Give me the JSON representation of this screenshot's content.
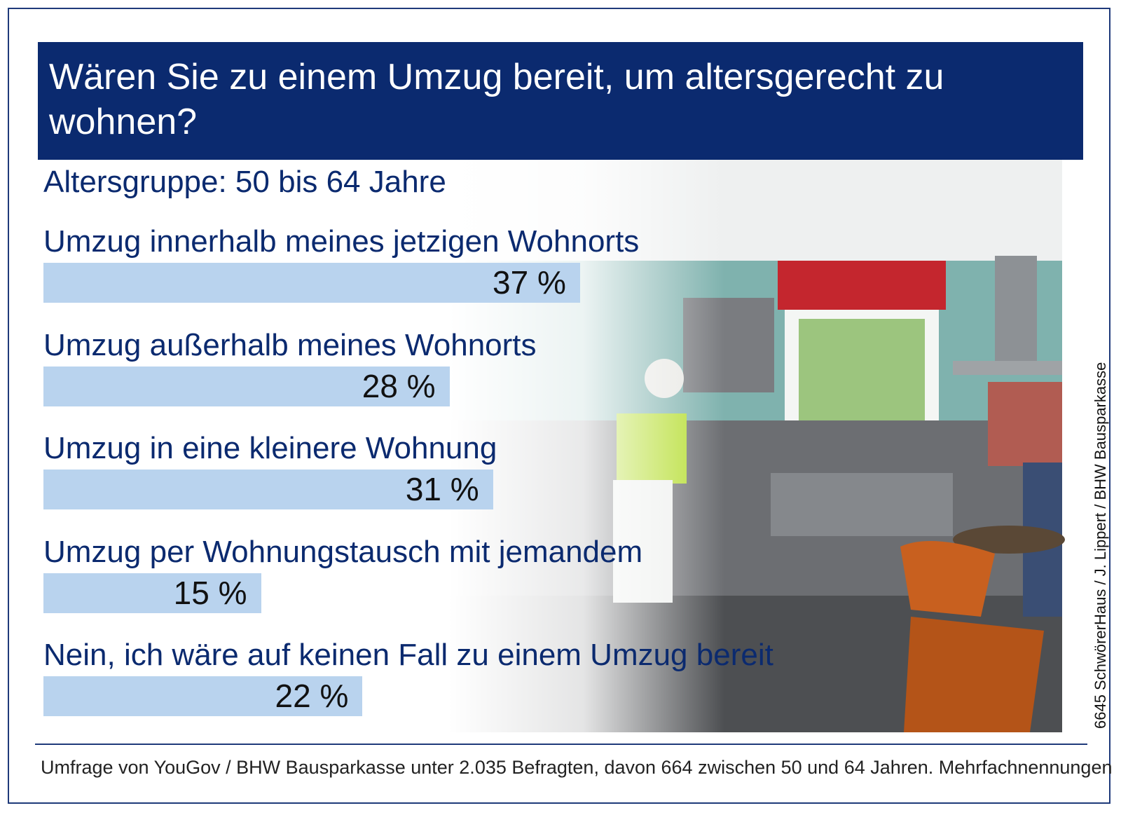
{
  "chart_data": {
    "type": "bar",
    "orientation": "horizontal",
    "title": "Wären Sie zu einem Umzug bereit, um altersgerecht zu wohnen?",
    "subtitle": "Altersgruppe: 50 bis 64 Jahre",
    "categories": [
      "Umzug innerhalb meines jetzigen Wohnorts",
      "Umzug außerhalb meines Wohnorts",
      "Umzug in eine kleinere Wohnung",
      "Umzug per Wohnungstausch mit jemandem",
      "Nein, ich wäre auf keinen Fall zu einem Umzug bereit"
    ],
    "values": [
      37,
      28,
      31,
      15,
      22
    ],
    "value_labels": [
      "37 %",
      "28 %",
      "31 %",
      "15 %",
      "22 %"
    ],
    "color": "#b9d3ee",
    "credit": "6645  SchwörerHaus / J. Lippert / BHW Bausparkasse",
    "footnote": "Umfrage von YouGov / BHW Bausparkasse unter 2.035 Befragten, davon 664 zwischen 50 und 64 Jahren. Mehrfachnennungen"
  }
}
